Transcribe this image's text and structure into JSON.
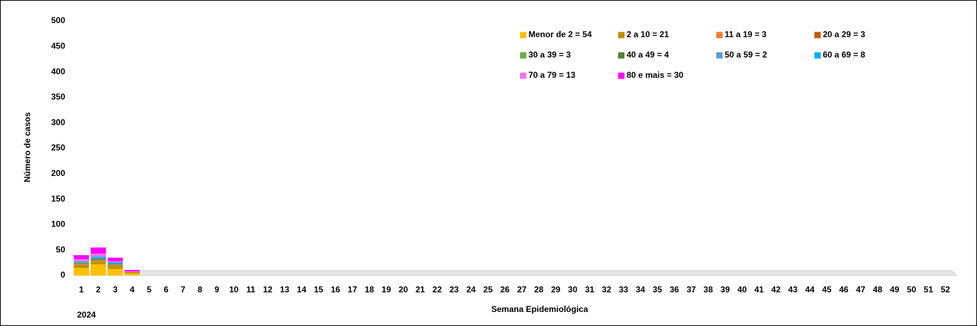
{
  "chart_data": {
    "type": "stacked_bar",
    "y_label": "Número de casos",
    "x_label": "Semana Epidemiológica",
    "x_group_label": "2024",
    "categories": [
      "1",
      "2",
      "3",
      "4",
      "5",
      "6",
      "7",
      "8",
      "9",
      "10",
      "11",
      "12",
      "13",
      "14",
      "15",
      "16",
      "17",
      "18",
      "19",
      "20",
      "21",
      "22",
      "23",
      "24",
      "25",
      "26",
      "27",
      "28",
      "29",
      "30",
      "31",
      "32",
      "33",
      "34",
      "35",
      "36",
      "37",
      "38",
      "39",
      "40",
      "41",
      "42",
      "43",
      "44",
      "45",
      "46",
      "47",
      "48",
      "49",
      "50",
      "51",
      "52"
    ],
    "ylim": [
      0,
      500
    ],
    "yticks": [
      0,
      50,
      100,
      150,
      200,
      250,
      300,
      350,
      400,
      450,
      500
    ],
    "series": [
      {
        "name": "Menor de 2 = 54",
        "color": "#ffc000",
        "values": [
          15,
          22,
          13,
          4,
          0,
          0,
          0,
          0,
          0,
          0,
          0,
          0,
          0,
          0,
          0,
          0,
          0,
          0,
          0,
          0,
          0,
          0,
          0,
          0,
          0,
          0,
          0,
          0,
          0,
          0,
          0,
          0,
          0,
          0,
          0,
          0,
          0,
          0,
          0,
          0,
          0,
          0,
          0,
          0,
          0,
          0,
          0,
          0,
          0,
          0,
          0,
          0
        ]
      },
      {
        "name": "2 a 10 = 21",
        "color": "#bf9000",
        "values": [
          6,
          6,
          6,
          3,
          0,
          0,
          0,
          0,
          0,
          0,
          0,
          0,
          0,
          0,
          0,
          0,
          0,
          0,
          0,
          0,
          0,
          0,
          0,
          0,
          0,
          0,
          0,
          0,
          0,
          0,
          0,
          0,
          0,
          0,
          0,
          0,
          0,
          0,
          0,
          0,
          0,
          0,
          0,
          0,
          0,
          0,
          0,
          0,
          0,
          0,
          0,
          0
        ]
      },
      {
        "name": "11 a 19 = 3",
        "color": "#ed7d31",
        "values": [
          1,
          1,
          1,
          0,
          0,
          0,
          0,
          0,
          0,
          0,
          0,
          0,
          0,
          0,
          0,
          0,
          0,
          0,
          0,
          0,
          0,
          0,
          0,
          0,
          0,
          0,
          0,
          0,
          0,
          0,
          0,
          0,
          0,
          0,
          0,
          0,
          0,
          0,
          0,
          0,
          0,
          0,
          0,
          0,
          0,
          0,
          0,
          0,
          0,
          0,
          0,
          0
        ]
      },
      {
        "name": "20 a 29 = 3",
        "color": "#c55a11",
        "values": [
          1,
          1,
          1,
          0,
          0,
          0,
          0,
          0,
          0,
          0,
          0,
          0,
          0,
          0,
          0,
          0,
          0,
          0,
          0,
          0,
          0,
          0,
          0,
          0,
          0,
          0,
          0,
          0,
          0,
          0,
          0,
          0,
          0,
          0,
          0,
          0,
          0,
          0,
          0,
          0,
          0,
          0,
          0,
          0,
          0,
          0,
          0,
          0,
          0,
          0,
          0,
          0
        ]
      },
      {
        "name": "30 a 39 = 3",
        "color": "#70ad47",
        "values": [
          1,
          1,
          1,
          0,
          0,
          0,
          0,
          0,
          0,
          0,
          0,
          0,
          0,
          0,
          0,
          0,
          0,
          0,
          0,
          0,
          0,
          0,
          0,
          0,
          0,
          0,
          0,
          0,
          0,
          0,
          0,
          0,
          0,
          0,
          0,
          0,
          0,
          0,
          0,
          0,
          0,
          0,
          0,
          0,
          0,
          0,
          0,
          0,
          0,
          0,
          0,
          0
        ]
      },
      {
        "name": "40 a 49 = 4",
        "color": "#548235",
        "values": [
          1,
          2,
          1,
          0,
          0,
          0,
          0,
          0,
          0,
          0,
          0,
          0,
          0,
          0,
          0,
          0,
          0,
          0,
          0,
          0,
          0,
          0,
          0,
          0,
          0,
          0,
          0,
          0,
          0,
          0,
          0,
          0,
          0,
          0,
          0,
          0,
          0,
          0,
          0,
          0,
          0,
          0,
          0,
          0,
          0,
          0,
          0,
          0,
          0,
          0,
          0,
          0
        ]
      },
      {
        "name": "50 a 59 = 2",
        "color": "#5b9bd5",
        "values": [
          1,
          1,
          0,
          0,
          0,
          0,
          0,
          0,
          0,
          0,
          0,
          0,
          0,
          0,
          0,
          0,
          0,
          0,
          0,
          0,
          0,
          0,
          0,
          0,
          0,
          0,
          0,
          0,
          0,
          0,
          0,
          0,
          0,
          0,
          0,
          0,
          0,
          0,
          0,
          0,
          0,
          0,
          0,
          0,
          0,
          0,
          0,
          0,
          0,
          0,
          0,
          0
        ]
      },
      {
        "name": "60 a 69 = 8",
        "color": "#00b0f0",
        "values": [
          2,
          3,
          3,
          0,
          0,
          0,
          0,
          0,
          0,
          0,
          0,
          0,
          0,
          0,
          0,
          0,
          0,
          0,
          0,
          0,
          0,
          0,
          0,
          0,
          0,
          0,
          0,
          0,
          0,
          0,
          0,
          0,
          0,
          0,
          0,
          0,
          0,
          0,
          0,
          0,
          0,
          0,
          0,
          0,
          0,
          0,
          0,
          0,
          0,
          0,
          0,
          0
        ]
      },
      {
        "name": "70 a 79 = 13",
        "color": "#f472f0",
        "values": [
          4,
          6,
          2,
          1,
          0,
          0,
          0,
          0,
          0,
          0,
          0,
          0,
          0,
          0,
          0,
          0,
          0,
          0,
          0,
          0,
          0,
          0,
          0,
          0,
          0,
          0,
          0,
          0,
          0,
          0,
          0,
          0,
          0,
          0,
          0,
          0,
          0,
          0,
          0,
          0,
          0,
          0,
          0,
          0,
          0,
          0,
          0,
          0,
          0,
          0,
          0,
          0
        ]
      },
      {
        "name": "80 e mais = 30",
        "color": "#ff00ff",
        "values": [
          8,
          12,
          7,
          3,
          0,
          0,
          0,
          0,
          0,
          0,
          0,
          0,
          0,
          0,
          0,
          0,
          0,
          0,
          0,
          0,
          0,
          0,
          0,
          0,
          0,
          0,
          0,
          0,
          0,
          0,
          0,
          0,
          0,
          0,
          0,
          0,
          0,
          0,
          0,
          0,
          0,
          0,
          0,
          0,
          0,
          0,
          0,
          0,
          0,
          0,
          0,
          0
        ]
      }
    ]
  }
}
